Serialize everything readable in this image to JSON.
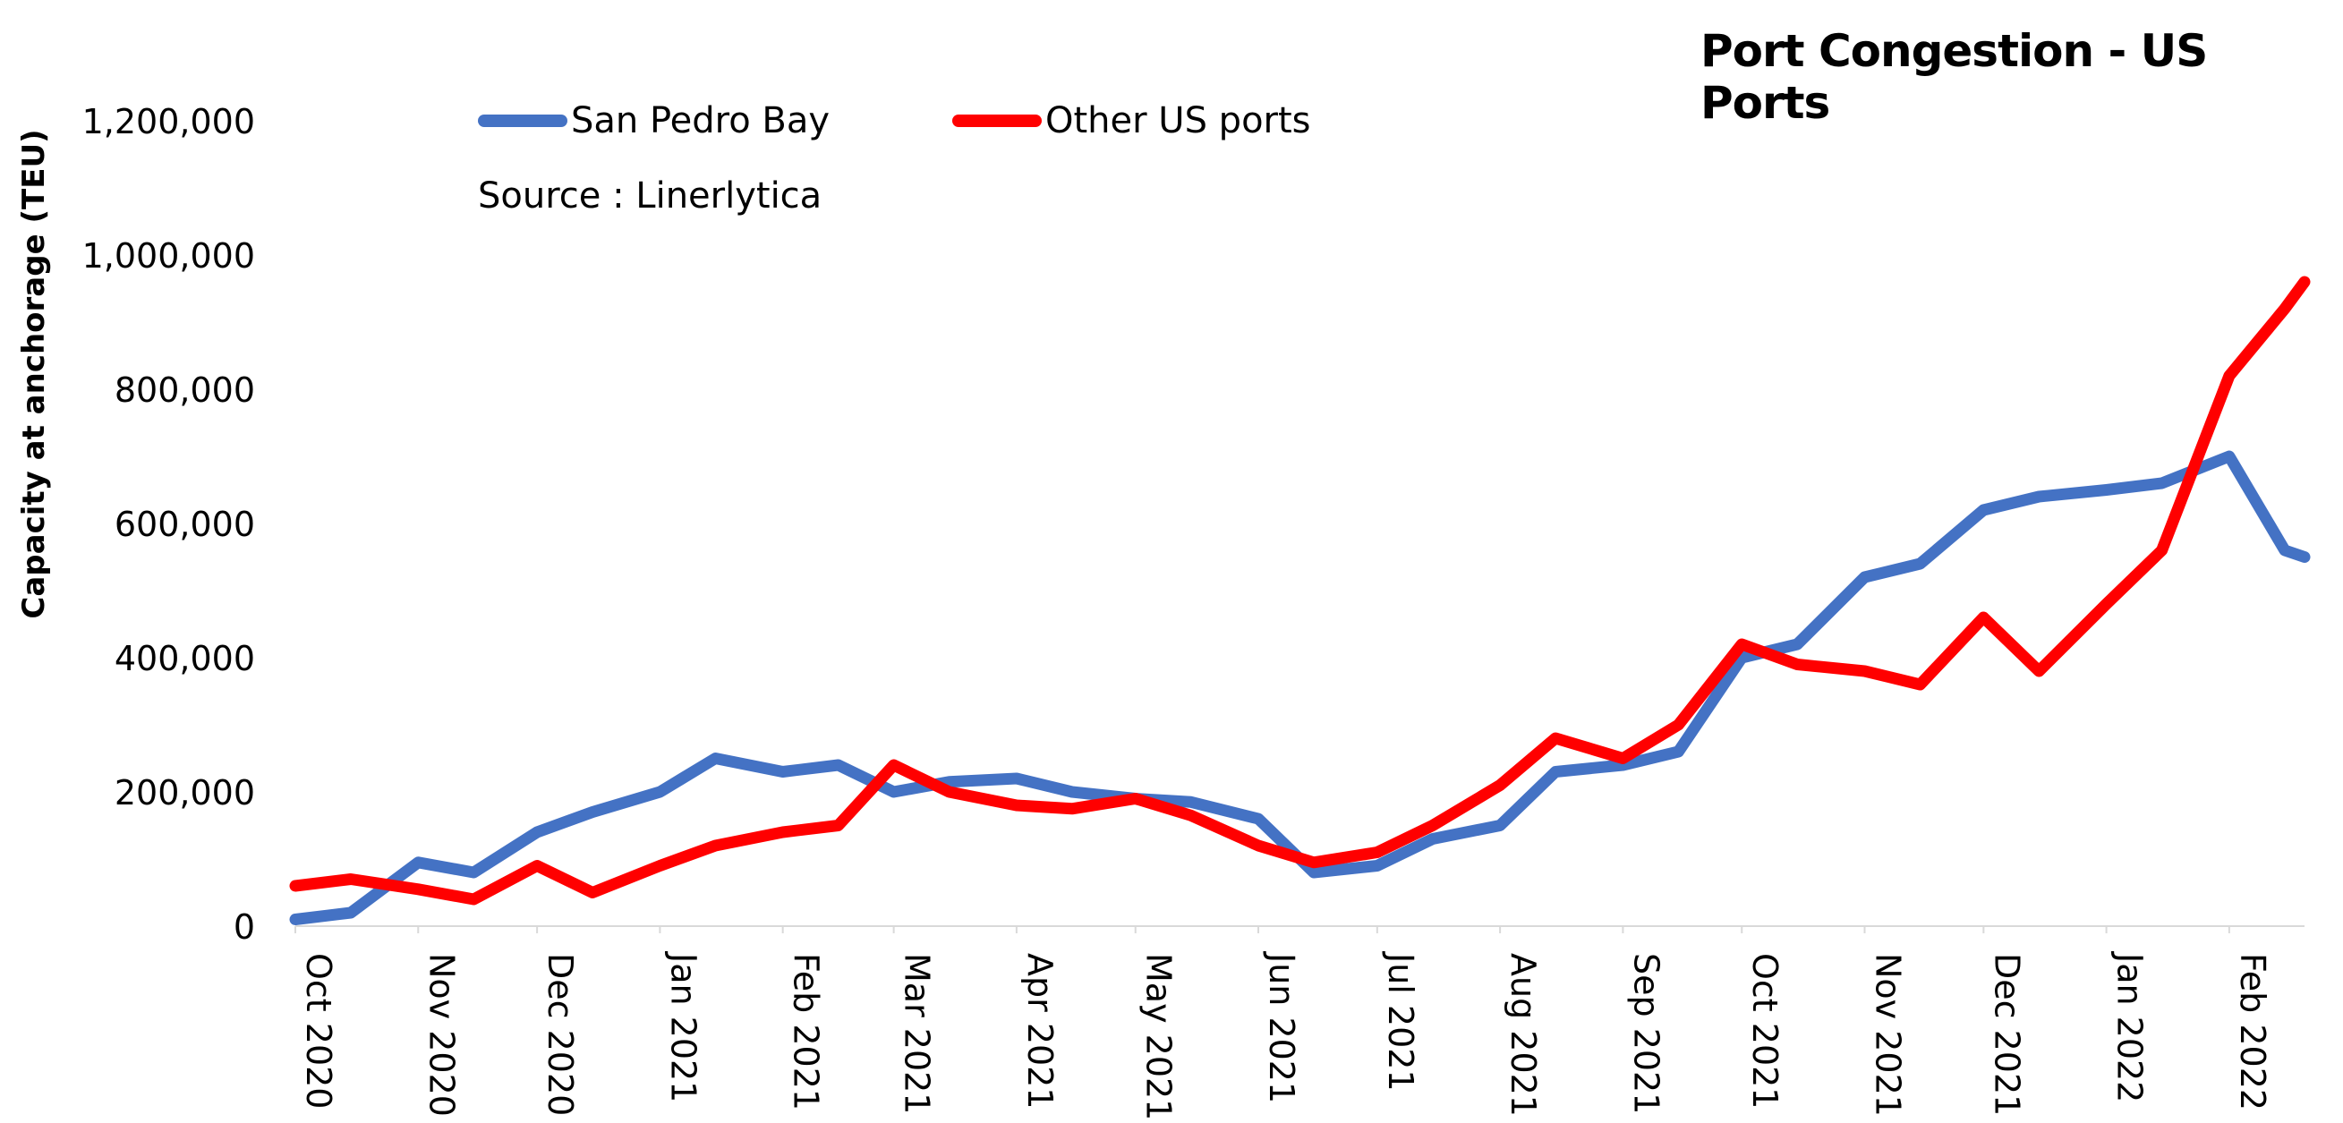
{
  "chart_data": {
    "type": "line",
    "title": "Port Congestion - US Ports",
    "annotation": "Source : Linerlytica",
    "xlabel": "",
    "ylabel": "Capacity at anchorage (TEU)",
    "ylim": [
      0,
      1200000
    ],
    "yticks": [
      "0",
      "200,000",
      "400,000",
      "600,000",
      "800,000",
      "1,000,000",
      "1,200,000"
    ],
    "xticks": [
      "Oct 2020",
      "Nov 2020",
      "Dec 2020",
      "Jan 2021",
      "Feb 2021",
      "Mar 2021",
      "Apr 2021",
      "May 2021",
      "Jun 2021",
      "Jul 2021",
      "Aug 2021",
      "Sep 2021",
      "Oct 2021",
      "Nov 2021",
      "Dec 2021",
      "Jan 2022",
      "Feb 2022"
    ],
    "grid": false,
    "legend": "top-left",
    "x": [
      "2020-10-01",
      "2020-10-15",
      "2020-11-01",
      "2020-11-15",
      "2020-12-01",
      "2020-12-15",
      "2021-01-01",
      "2021-01-15",
      "2021-02-01",
      "2021-02-15",
      "2021-03-01",
      "2021-03-15",
      "2021-04-01",
      "2021-04-15",
      "2021-05-01",
      "2021-05-15",
      "2021-06-01",
      "2021-06-15",
      "2021-07-01",
      "2021-07-15",
      "2021-08-01",
      "2021-08-15",
      "2021-09-01",
      "2021-09-15",
      "2021-10-01",
      "2021-10-15",
      "2021-11-01",
      "2021-11-15",
      "2021-12-01",
      "2021-12-15",
      "2022-01-01",
      "2022-01-15",
      "2022-02-01",
      "2022-02-15",
      "2022-02-20"
    ],
    "series": [
      {
        "name": "San Pedro Bay",
        "color": "#4472C4",
        "values": [
          10000,
          20000,
          95000,
          80000,
          140000,
          170000,
          200000,
          250000,
          230000,
          240000,
          200000,
          215000,
          220000,
          200000,
          190000,
          185000,
          160000,
          80000,
          90000,
          130000,
          150000,
          230000,
          240000,
          260000,
          400000,
          420000,
          520000,
          540000,
          620000,
          640000,
          650000,
          660000,
          700000,
          560000,
          550000
        ]
      },
      {
        "name": "Other US ports",
        "color": "#FF0000",
        "values": [
          60000,
          70000,
          55000,
          40000,
          90000,
          50000,
          90000,
          120000,
          140000,
          150000,
          240000,
          200000,
          180000,
          175000,
          190000,
          165000,
          120000,
          95000,
          110000,
          150000,
          210000,
          280000,
          250000,
          300000,
          420000,
          390000,
          380000,
          360000,
          460000,
          380000,
          480000,
          560000,
          820000,
          920000,
          960000
        ]
      }
    ]
  }
}
